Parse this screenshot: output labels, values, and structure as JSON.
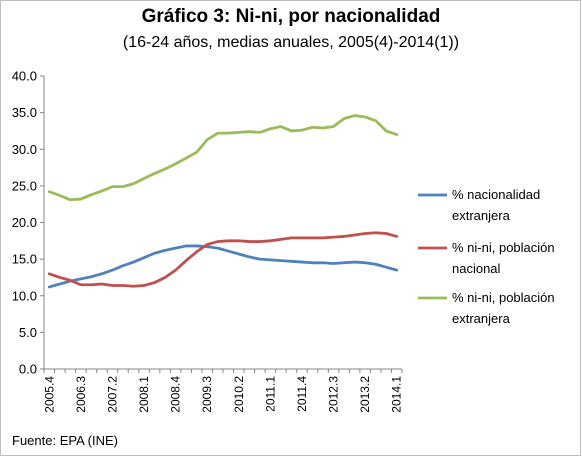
{
  "chart_data": {
    "type": "line",
    "title": "Gráfico 3: Ni-ni, por nacionalidad",
    "subtitle": "(16-24 años, medias anuales, 2005(4)-2014(1))",
    "source": "Fuente:  EPA (INE)",
    "xlabel": "",
    "ylabel": "",
    "ylim": [
      0,
      40
    ],
    "yticks": [
      "0.0",
      "5.0",
      "10.0",
      "15.0",
      "20.0",
      "25.0",
      "30.0",
      "35.0",
      "40.0"
    ],
    "grid": false,
    "legend_position": "right",
    "x": [
      "2005.4",
      "2006.1",
      "2006.2",
      "2006.3",
      "2006.4",
      "2007.1",
      "2007.2",
      "2007.3",
      "2007.4",
      "2008.1",
      "2008.2",
      "2008.3",
      "2008.4",
      "2009.1",
      "2009.2",
      "2009.3",
      "2009.4",
      "2010.1",
      "2010.2",
      "2010.3",
      "2010.4",
      "2011.1",
      "2011.2",
      "2011.3",
      "2011.4",
      "2012.1",
      "2012.2",
      "2012.3",
      "2012.4",
      "2013.1",
      "2013.2",
      "2013.3",
      "2013.4",
      "2014.1"
    ],
    "x_tick_labels": [
      "2005.4",
      "2006.3",
      "2007.2",
      "2008.1",
      "2008.4",
      "2009.3",
      "2010.2",
      "2011.1",
      "2011.4",
      "2012.3",
      "2013.2",
      "2014.1"
    ],
    "series": [
      {
        "name": "% nacionalidad extranjera",
        "color": "#4f81bd",
        "values": [
          11.2,
          11.6,
          12.0,
          12.3,
          12.6,
          13.0,
          13.5,
          14.1,
          14.6,
          15.2,
          15.8,
          16.2,
          16.5,
          16.8,
          16.8,
          16.7,
          16.5,
          16.1,
          15.7,
          15.3,
          15.0,
          14.9,
          14.8,
          14.7,
          14.6,
          14.5,
          14.5,
          14.4,
          14.5,
          14.6,
          14.5,
          14.3,
          13.9,
          13.5
        ]
      },
      {
        "name": "% ni-ni, población nacional",
        "color": "#c0504d",
        "values": [
          13.0,
          12.5,
          12.1,
          11.5,
          11.5,
          11.6,
          11.4,
          11.4,
          11.3,
          11.4,
          11.8,
          12.5,
          13.5,
          14.8,
          16.0,
          17.0,
          17.4,
          17.5,
          17.5,
          17.4,
          17.4,
          17.5,
          17.7,
          17.9,
          17.9,
          17.9,
          17.9,
          18.0,
          18.1,
          18.3,
          18.5,
          18.6,
          18.5,
          18.1
        ]
      },
      {
        "name": "% ni-ni, población extranjera",
        "color": "#9bbb59",
        "values": [
          24.2,
          23.7,
          23.1,
          23.2,
          23.8,
          24.3,
          24.9,
          24.9,
          25.3,
          26.0,
          26.7,
          27.3,
          28.0,
          28.8,
          29.6,
          31.3,
          32.2,
          32.2,
          32.3,
          32.4,
          32.3,
          32.8,
          33.1,
          32.5,
          32.6,
          33.0,
          32.9,
          33.1,
          34.2,
          34.6,
          34.4,
          33.9,
          32.5,
          32.0
        ]
      }
    ],
    "legend_lines": [
      [
        "% nacionalidad",
        "extranjera"
      ],
      [
        "% ni-ni, población",
        "nacional"
      ],
      [
        "% ni-ni, población",
        "extranjera"
      ]
    ]
  }
}
